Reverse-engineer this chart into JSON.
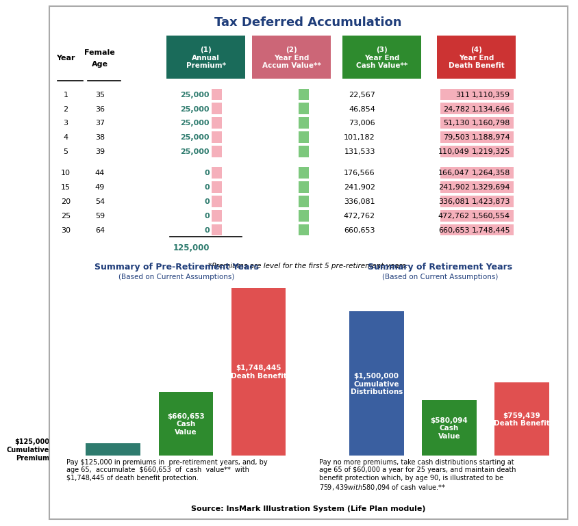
{
  "title": "Tax Deferred Accumulation",
  "title_color": "#1f3d7a",
  "col_headers": [
    "(1)\nAnnual\nPremium*",
    "(2)\nYear End\nAccum Value**",
    "(3)\nYear End\nCash Value**",
    "(4)\nYear End\nDeath Benefit"
  ],
  "col_colors": [
    "#1a6b5a",
    "#cc6677",
    "#2e8b2e",
    "#cc3333"
  ],
  "rows": [
    [
      1,
      35,
      "25,000",
      "22,567",
      "311",
      "1,110,359"
    ],
    [
      2,
      36,
      "25,000",
      "46,854",
      "24,782",
      "1,134,646"
    ],
    [
      3,
      37,
      "25,000",
      "73,006",
      "51,130",
      "1,160,798"
    ],
    [
      4,
      38,
      "25,000",
      "101,182",
      "79,503",
      "1,188,974"
    ],
    [
      5,
      39,
      "25,000",
      "131,533",
      "110,049",
      "1,219,325"
    ],
    [
      10,
      44,
      "0",
      "176,566",
      "166,047",
      "1,264,358"
    ],
    [
      15,
      49,
      "0",
      "241,902",
      "241,902",
      "1,329,694"
    ],
    [
      20,
      54,
      "0",
      "336,081",
      "336,081",
      "1,423,873"
    ],
    [
      25,
      59,
      "0",
      "472,762",
      "472,762",
      "1,560,554"
    ],
    [
      30,
      64,
      "0",
      "660,653",
      "660,653",
      "1,748,445"
    ]
  ],
  "total_label": "125,000",
  "footnote": "*Premiums are level for the first 5 pre-retirement years.",
  "pre_title": "Summary of Pre-Retirement Years",
  "pre_subtitle": "(Based on Current Assumptions)",
  "ret_title": "Summary of Retirement Years",
  "ret_subtitle": "(Based on Current Assumptions)",
  "pre_bars": {
    "labels": [
      "$125,000\nCumulative\nPremium",
      "$660,653\nCash\nValue",
      "$1,748,445\nDeath Benefit"
    ],
    "values": [
      125000,
      660653,
      1748445
    ],
    "colors": [
      "#2e7b6e",
      "#2e8b2e",
      "#e05050"
    ],
    "label_colors": [
      "#000000",
      "#ffffff",
      "#ffffff"
    ]
  },
  "ret_bars": {
    "labels": [
      "$1,500,000\nCumulative\nDistributions",
      "$580,094\nCash\nValue",
      "$759,439\nDeath Benefit"
    ],
    "values": [
      1500000,
      580094,
      759439
    ],
    "colors": [
      "#3a5fa0",
      "#2e8b2e",
      "#e05050"
    ],
    "label_colors": [
      "#ffffff",
      "#ffffff",
      "#ffffff"
    ]
  },
  "pre_text": "Pay $125,000 in premiums in  pre-retirement years, and, by\nage 65,  accumulate  $660,653  of  cash  value**  with\n$1,748,445 of death benefit protection.",
  "ret_text": "Pay no more premiums, take cash distributions starting at\nage 65 of $60,000 a year for 25 years, and maintain death\nbenefit protection which, by age 90, is illustrated to be\n$759,439 with $580,094 of cash value.**",
  "source": "Source: InsMark Illustration System (Life Plan module)",
  "teal_text": "#2e7b6e",
  "dark_blue": "#1f3d7a",
  "pink_band": "#f5b0bb",
  "green_band": "#7dc87d",
  "pink_bg": "#f5b0bb"
}
